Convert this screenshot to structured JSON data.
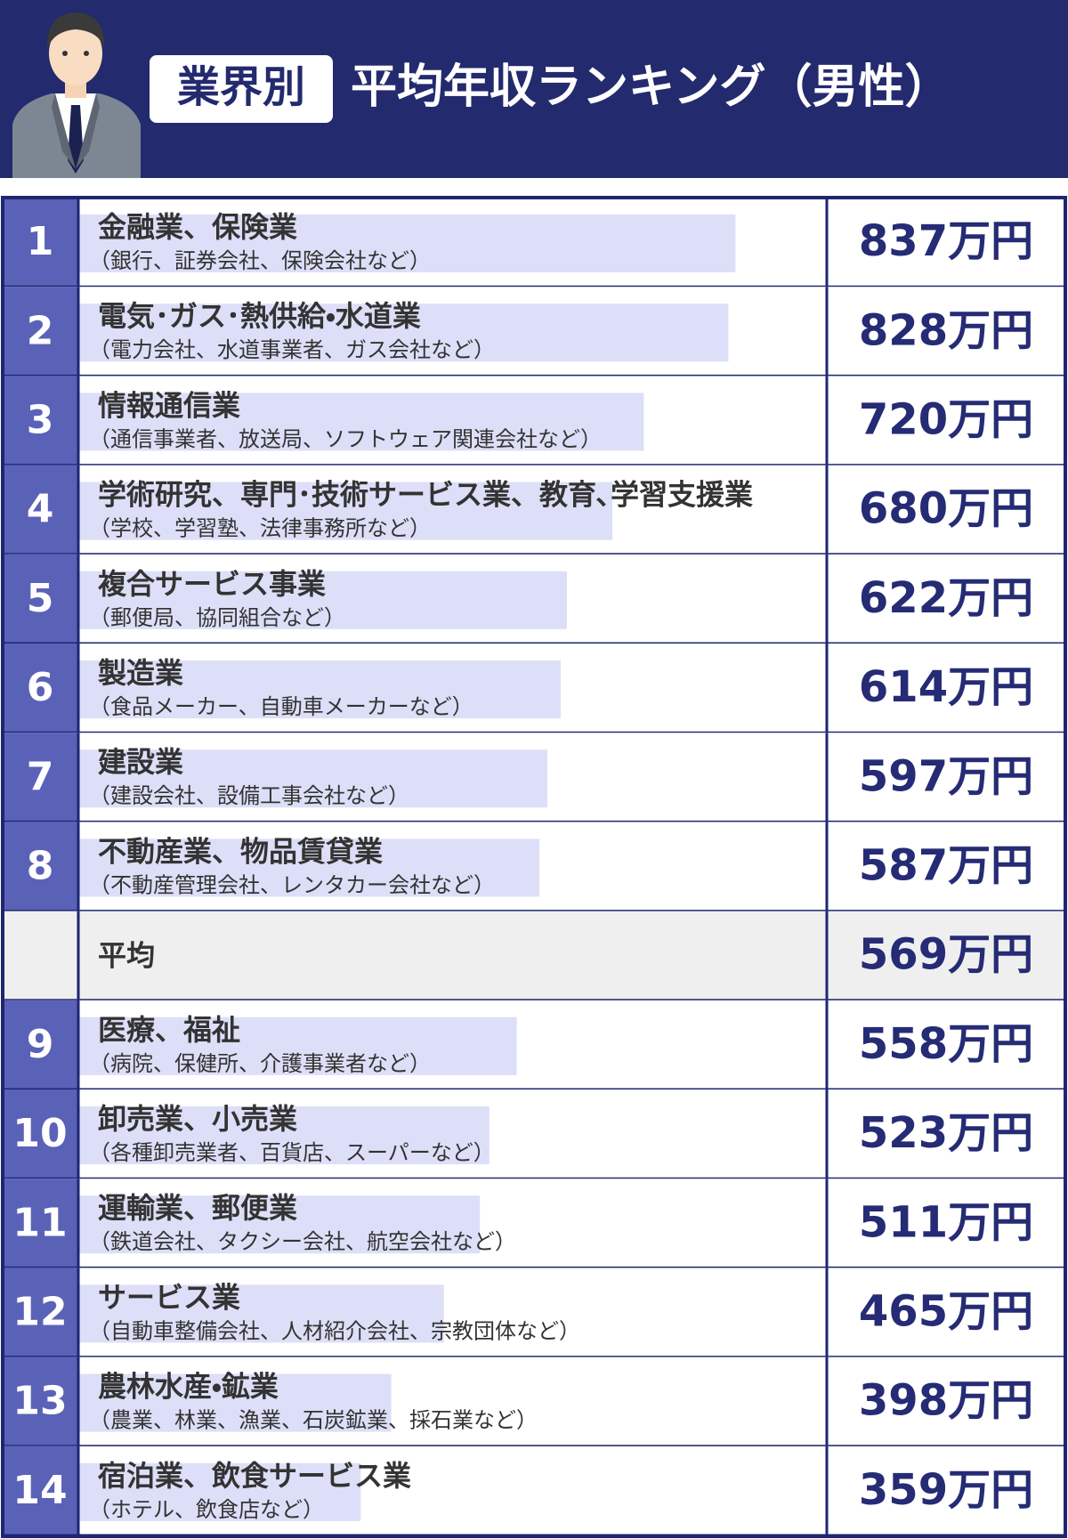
{
  "chart_data": {
    "type": "bar",
    "title_tag": "業界別",
    "title": "平均年収ランキング（男性）",
    "ranks": [
      1,
      2,
      3,
      4,
      5,
      6,
      7,
      8,
      null,
      9,
      10,
      11,
      12,
      13,
      14
    ],
    "categories": [
      "金融業、保険業",
      "電気･ガス･熱供給・水道業",
      "情報通信業",
      "学術研究、専門･技術サービス業、教育､学習支援業",
      "複合サービス事業",
      "製造業",
      "建設業",
      "不動産業、物品賃貸業",
      "平均",
      "医療、福祉",
      "卸売業、小売業",
      "運輸業、郵便業",
      "サービス業",
      "農林水産・鉱業",
      "宿泊業、飲食サービス業"
    ],
    "descriptions": [
      "（銀行、証券会社、保険会社など）",
      "（電力会社、水道事業者、ガス会社など）",
      "（通信事業者、放送局、ソフトウェア関連会社など）",
      "（学校、学習塾、法律事務所など）",
      "（郵便局、協同組合など）",
      "（食品メーカー、自動車メーカーなど）",
      "（建設会社、設備工事会社など）",
      "（不動産管理会社、レンタカー会社など）",
      null,
      "（病院、保健所、介護事業者など）",
      "（各種卸売業者、百貨店、スーパーなど）",
      "（鉄道会社、タクシー会社、航空会社など）",
      "（自動車整備会社、人材紹介会社、宗教団体など）",
      "（農業、林業、漁業、石炭鉱業、採石業など）",
      "（ホテル、飲食店など）"
    ],
    "values": [
      837,
      828,
      720,
      680,
      622,
      614,
      597,
      587,
      569,
      558,
      523,
      511,
      465,
      398,
      359
    ],
    "value_labels": [
      "837万円",
      "828万円",
      "720万円",
      "680万円",
      "622万円",
      "614万円",
      "597万円",
      "587万円",
      "569万円",
      "558万円",
      "523万円",
      "511万円",
      "465万円",
      "398万円",
      "359万円"
    ],
    "color": "#dcdff7"
  }
}
